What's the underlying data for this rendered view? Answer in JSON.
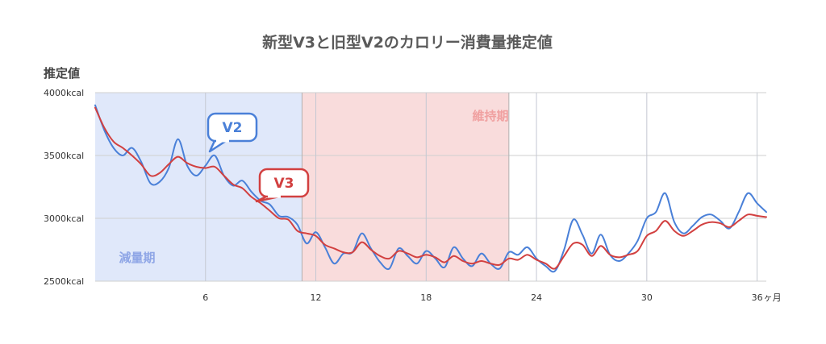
{
  "chart_data": {
    "type": "line",
    "title": "新型V3と旧型V2のカロリー消費量推定値",
    "ylabel": "推定値",
    "xlabel": "",
    "x_unit": "ヶ月",
    "xlim": [
      0,
      36.5
    ],
    "ylim": [
      2500,
      4000
    ],
    "grid": true,
    "yticks": [
      {
        "value": 4000,
        "label": "4000kcal"
      },
      {
        "value": 3500,
        "label": "3500kcal"
      },
      {
        "value": 3000,
        "label": "3000kcal"
      },
      {
        "value": 2500,
        "label": "2500kcal"
      }
    ],
    "xticks": [
      {
        "value": 6,
        "label": "6"
      },
      {
        "value": 12,
        "label": "12"
      },
      {
        "value": 18,
        "label": "18"
      },
      {
        "value": 24,
        "label": "24"
      },
      {
        "value": 30,
        "label": "30"
      },
      {
        "value": 36,
        "label": "36"
      }
    ],
    "regions": [
      {
        "label": "減量期",
        "x_start": 0,
        "x_end": 11.25,
        "color": "#e0e8fa",
        "label_color": "#8fa6e6"
      },
      {
        "label": "維持期",
        "x_start": 11.25,
        "x_end": 22.5,
        "color": "#f9dcdc",
        "label_color": "#f0a0a0"
      }
    ],
    "x": [
      0,
      0.5,
      1,
      1.5,
      2,
      2.5,
      3,
      3.5,
      4,
      4.5,
      5,
      5.5,
      6,
      6.5,
      7,
      7.5,
      8,
      8.5,
      9,
      9.5,
      10,
      10.5,
      11,
      11.5,
      12,
      12.5,
      13,
      13.5,
      14,
      14.5,
      15,
      15.5,
      16,
      16.5,
      17,
      17.5,
      18,
      18.5,
      19,
      19.5,
      20,
      20.5,
      21,
      21.5,
      22,
      22.5,
      23,
      23.5,
      24,
      24.5,
      25,
      25.5,
      26,
      26.5,
      27,
      27.5,
      28,
      28.5,
      29,
      29.5,
      30,
      30.5,
      31,
      31.5,
      32,
      32.5,
      33,
      33.5,
      34,
      34.5,
      35,
      35.5,
      36,
      36.5
    ],
    "series": [
      {
        "name": "V2",
        "color": "#4a80d8",
        "values": [
          3900,
          3700,
          3560,
          3500,
          3560,
          3450,
          3280,
          3290,
          3400,
          3630,
          3420,
          3340,
          3420,
          3500,
          3340,
          3260,
          3300,
          3210,
          3140,
          3110,
          3020,
          3010,
          2950,
          2800,
          2890,
          2770,
          2640,
          2720,
          2730,
          2880,
          2760,
          2650,
          2600,
          2760,
          2700,
          2640,
          2740,
          2680,
          2610,
          2770,
          2680,
          2620,
          2720,
          2640,
          2600,
          2730,
          2710,
          2770,
          2680,
          2620,
          2580,
          2750,
          2990,
          2870,
          2720,
          2870,
          2710,
          2660,
          2720,
          2820,
          3000,
          3050,
          3200,
          2970,
          2880,
          2940,
          3010,
          3030,
          2980,
          2920,
          3050,
          3200,
          3120,
          3050
        ]
      },
      {
        "name": "V3",
        "color": "#d24040",
        "values": [
          3880,
          3720,
          3610,
          3560,
          3500,
          3430,
          3340,
          3360,
          3430,
          3490,
          3440,
          3410,
          3400,
          3410,
          3340,
          3270,
          3240,
          3170,
          3120,
          3060,
          3000,
          2990,
          2900,
          2880,
          2860,
          2790,
          2760,
          2730,
          2730,
          2810,
          2750,
          2700,
          2680,
          2740,
          2720,
          2690,
          2710,
          2690,
          2650,
          2700,
          2660,
          2640,
          2660,
          2640,
          2630,
          2680,
          2670,
          2710,
          2670,
          2640,
          2600,
          2700,
          2800,
          2790,
          2700,
          2780,
          2710,
          2690,
          2710,
          2740,
          2860,
          2900,
          2980,
          2900,
          2860,
          2900,
          2950,
          2970,
          2960,
          2930,
          2980,
          3030,
          3020,
          3010
        ]
      }
    ]
  }
}
